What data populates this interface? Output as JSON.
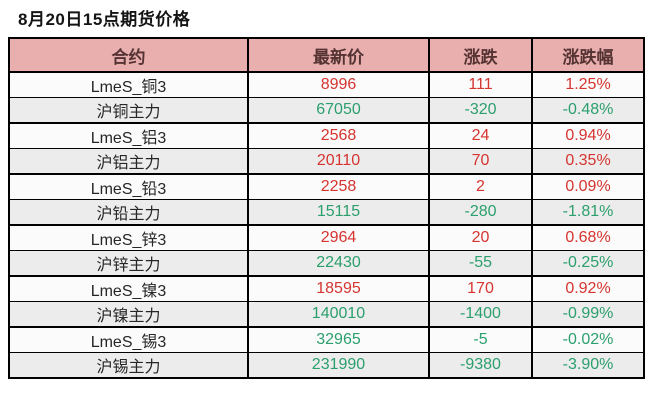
{
  "title": "8月20日15点期货价格",
  "colors": {
    "header_bg": "#e9aeae",
    "header_text": "#553333",
    "up": "#d5342f",
    "down": "#2b9f6d",
    "row_bg": "#fbfbfb",
    "row_alt_bg": "#ececec",
    "border": "#000000"
  },
  "chart_data": {
    "type": "table",
    "title": "8月20日15点期货价格",
    "columns": [
      "合约",
      "最新价",
      "涨跌",
      "涨跌幅"
    ],
    "rows": [
      {
        "contract": "LmeS_铜3",
        "last": "8996",
        "change": "111",
        "pct": "1.25%",
        "direction": "up"
      },
      {
        "contract": "沪铜主力",
        "last": "67050",
        "change": "-320",
        "pct": "-0.48%",
        "direction": "down"
      },
      {
        "contract": "LmeS_铝3",
        "last": "2568",
        "change": "24",
        "pct": "0.94%",
        "direction": "up"
      },
      {
        "contract": "沪铝主力",
        "last": "20110",
        "change": "70",
        "pct": "0.35%",
        "direction": "up"
      },
      {
        "contract": "LmeS_铅3",
        "last": "2258",
        "change": "2",
        "pct": "0.09%",
        "direction": "up"
      },
      {
        "contract": "沪铅主力",
        "last": "15115",
        "change": "-280",
        "pct": "-1.81%",
        "direction": "down"
      },
      {
        "contract": "LmeS_锌3",
        "last": "2964",
        "change": "20",
        "pct": "0.68%",
        "direction": "up"
      },
      {
        "contract": "沪锌主力",
        "last": "22430",
        "change": "-55",
        "pct": "-0.25%",
        "direction": "down"
      },
      {
        "contract": "LmeS_镍3",
        "last": "18595",
        "change": "170",
        "pct": "0.92%",
        "direction": "up"
      },
      {
        "contract": "沪镍主力",
        "last": "140010",
        "change": "-1400",
        "pct": "-0.99%",
        "direction": "down"
      },
      {
        "contract": "LmeS_锡3",
        "last": "32965",
        "change": "-5",
        "pct": "-0.02%",
        "direction": "down"
      },
      {
        "contract": "沪锡主力",
        "last": "231990",
        "change": "-9380",
        "pct": "-3.90%",
        "direction": "down"
      }
    ]
  }
}
